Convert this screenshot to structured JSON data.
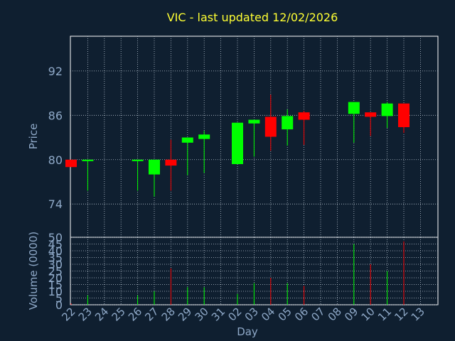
{
  "colors": {
    "background": "#0f1f30",
    "frame": "#ffffff",
    "grid": "#b8c4d0",
    "tick_text": "#8fa9c8",
    "title": "#ffff33",
    "up": "#00ff00",
    "down": "#ff0000"
  },
  "chart_data": [
    {
      "type": "candlestick",
      "title": "VIC - last updated 12/02/2026",
      "xlabel": "",
      "ylabel": "Price",
      "ylim": [
        69.5,
        96.7
      ],
      "yticks": [
        74,
        80,
        86,
        92
      ],
      "categories": [
        "22",
        "23",
        "24",
        "25",
        "26",
        "27",
        "28",
        "29",
        "30",
        "31",
        "02",
        "03",
        "04",
        "05",
        "06",
        "07",
        "08",
        "09",
        "10",
        "11",
        "12",
        "13"
      ],
      "grid": true,
      "candles": [
        {
          "x": "22",
          "open": 80.0,
          "close": 79.0,
          "high": 80.0,
          "low": 79.0
        },
        {
          "x": "23",
          "open": 79.8,
          "close": 80.0,
          "high": 80.0,
          "low": 75.8
        },
        {
          "x": "26",
          "open": 79.8,
          "close": 80.0,
          "high": 80.0,
          "low": 75.8
        },
        {
          "x": "27",
          "open": 78.0,
          "close": 80.0,
          "high": 80.0,
          "low": 75.0
        },
        {
          "x": "28",
          "open": 80.0,
          "close": 79.2,
          "high": 82.7,
          "low": 75.8
        },
        {
          "x": "29",
          "open": 82.3,
          "close": 83.0,
          "high": 83.0,
          "low": 77.9
        },
        {
          "x": "30",
          "open": 82.8,
          "close": 83.4,
          "high": 83.9,
          "low": 78.2
        },
        {
          "x": "02",
          "open": 79.4,
          "close": 85.0,
          "high": 85.0,
          "low": 79.4
        },
        {
          "x": "03",
          "open": 84.9,
          "close": 85.4,
          "high": 85.4,
          "low": 80.4
        },
        {
          "x": "04",
          "open": 85.8,
          "close": 83.1,
          "high": 88.8,
          "low": 81.2
        },
        {
          "x": "05",
          "open": 84.1,
          "close": 85.9,
          "high": 86.8,
          "low": 81.9
        },
        {
          "x": "06",
          "open": 86.4,
          "close": 85.4,
          "high": 86.6,
          "low": 82.0
        },
        {
          "x": "09",
          "open": 86.2,
          "close": 87.8,
          "high": 87.8,
          "low": 82.3
        },
        {
          "x": "10",
          "open": 86.4,
          "close": 85.8,
          "high": 86.4,
          "low": 83.2
        },
        {
          "x": "11",
          "open": 85.9,
          "close": 87.6,
          "high": 87.8,
          "low": 84.3
        },
        {
          "x": "12",
          "open": 87.6,
          "close": 84.4,
          "high": 87.6,
          "low": 83.6
        }
      ]
    },
    {
      "type": "bar",
      "xlabel": "Day",
      "ylabel": "Volume (0000)",
      "ylim": [
        0,
        50
      ],
      "yticks": [
        0,
        5,
        10,
        15,
        20,
        25,
        30,
        35,
        40,
        45,
        50
      ],
      "categories": [
        "22",
        "23",
        "24",
        "25",
        "26",
        "27",
        "28",
        "29",
        "30",
        "31",
        "02",
        "03",
        "04",
        "05",
        "06",
        "07",
        "08",
        "09",
        "10",
        "11",
        "12",
        "13"
      ],
      "grid": true,
      "bars": [
        {
          "x": "22",
          "value": 1,
          "direction": "down"
        },
        {
          "x": "23",
          "value": 7,
          "direction": "up"
        },
        {
          "x": "26",
          "value": 7,
          "direction": "up"
        },
        {
          "x": "27",
          "value": 10,
          "direction": "up"
        },
        {
          "x": "28",
          "value": 27,
          "direction": "down"
        },
        {
          "x": "29",
          "value": 13,
          "direction": "up"
        },
        {
          "x": "30",
          "value": 13,
          "direction": "up"
        },
        {
          "x": "02",
          "value": 8,
          "direction": "up"
        },
        {
          "x": "03",
          "value": 16,
          "direction": "up"
        },
        {
          "x": "04",
          "value": 20,
          "direction": "down"
        },
        {
          "x": "05",
          "value": 16,
          "direction": "up"
        },
        {
          "x": "06",
          "value": 14,
          "direction": "down"
        },
        {
          "x": "09",
          "value": 45,
          "direction": "up"
        },
        {
          "x": "10",
          "value": 30,
          "direction": "down"
        },
        {
          "x": "11",
          "value": 25,
          "direction": "up"
        },
        {
          "x": "12",
          "value": 47,
          "direction": "down"
        }
      ]
    }
  ]
}
